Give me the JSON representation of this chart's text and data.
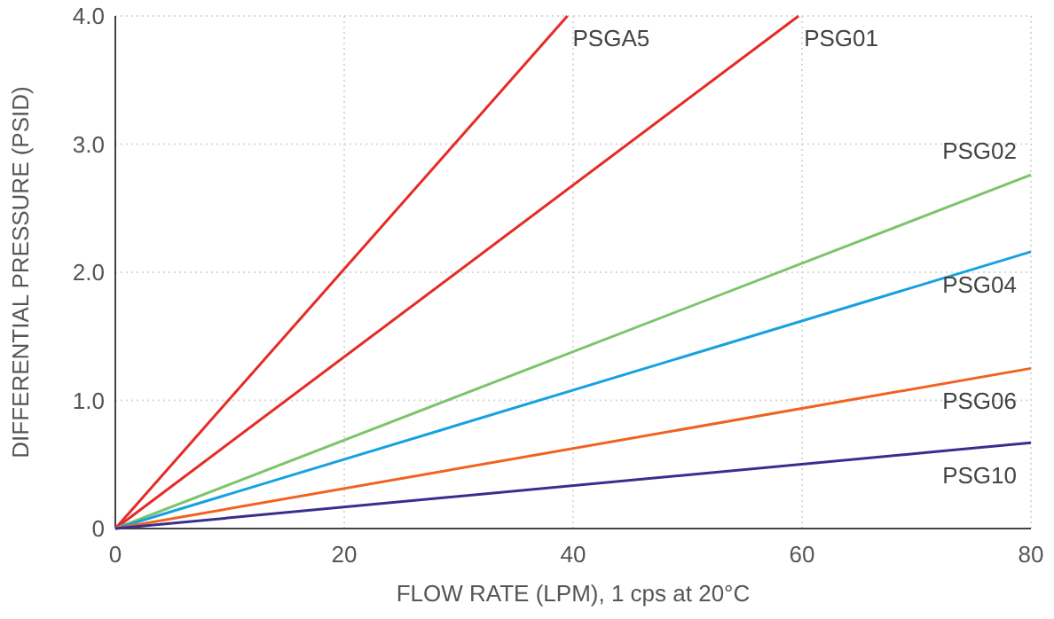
{
  "chart_data": {
    "type": "line",
    "xlabel": "FLOW RATE (LPM), 1 cps at 20°C",
    "ylabel": "DIFFERENTIAL PRESSURE (PSID)",
    "xlim": [
      0,
      80
    ],
    "xticks": [
      0,
      20,
      40,
      60,
      80
    ],
    "ylim": [
      0,
      4
    ],
    "yticks": [
      {
        "value": 0,
        "label": "0"
      },
      {
        "value": 1,
        "label": "1.0"
      },
      {
        "value": 2,
        "label": "2.0"
      },
      {
        "value": 3,
        "label": "3.0"
      },
      {
        "value": 4,
        "label": "4.0"
      }
    ],
    "grid": true,
    "marker": "none",
    "line_style": "solid",
    "series": [
      {
        "name": "PSGA5",
        "color": "#e52b25",
        "x": [
          0,
          39.5
        ],
        "values": [
          0,
          4
        ]
      },
      {
        "name": "PSG01",
        "color": "#e52b25",
        "x": [
          0,
          59.7
        ],
        "values": [
          0,
          4
        ]
      },
      {
        "name": "PSG02",
        "color": "#7cc46a",
        "x": [
          0,
          80
        ],
        "values": [
          0,
          2.76
        ]
      },
      {
        "name": "PSG04",
        "color": "#16a2e0",
        "x": [
          0,
          80
        ],
        "values": [
          0,
          2.16
        ]
      },
      {
        "name": "PSG06",
        "color": "#f0621f",
        "x": [
          0,
          80
        ],
        "values": [
          0,
          1.25
        ]
      },
      {
        "name": "PSG10",
        "color": "#3a2d8e",
        "x": [
          0,
          80
        ],
        "values": [
          0,
          0.67
        ]
      }
    ]
  }
}
